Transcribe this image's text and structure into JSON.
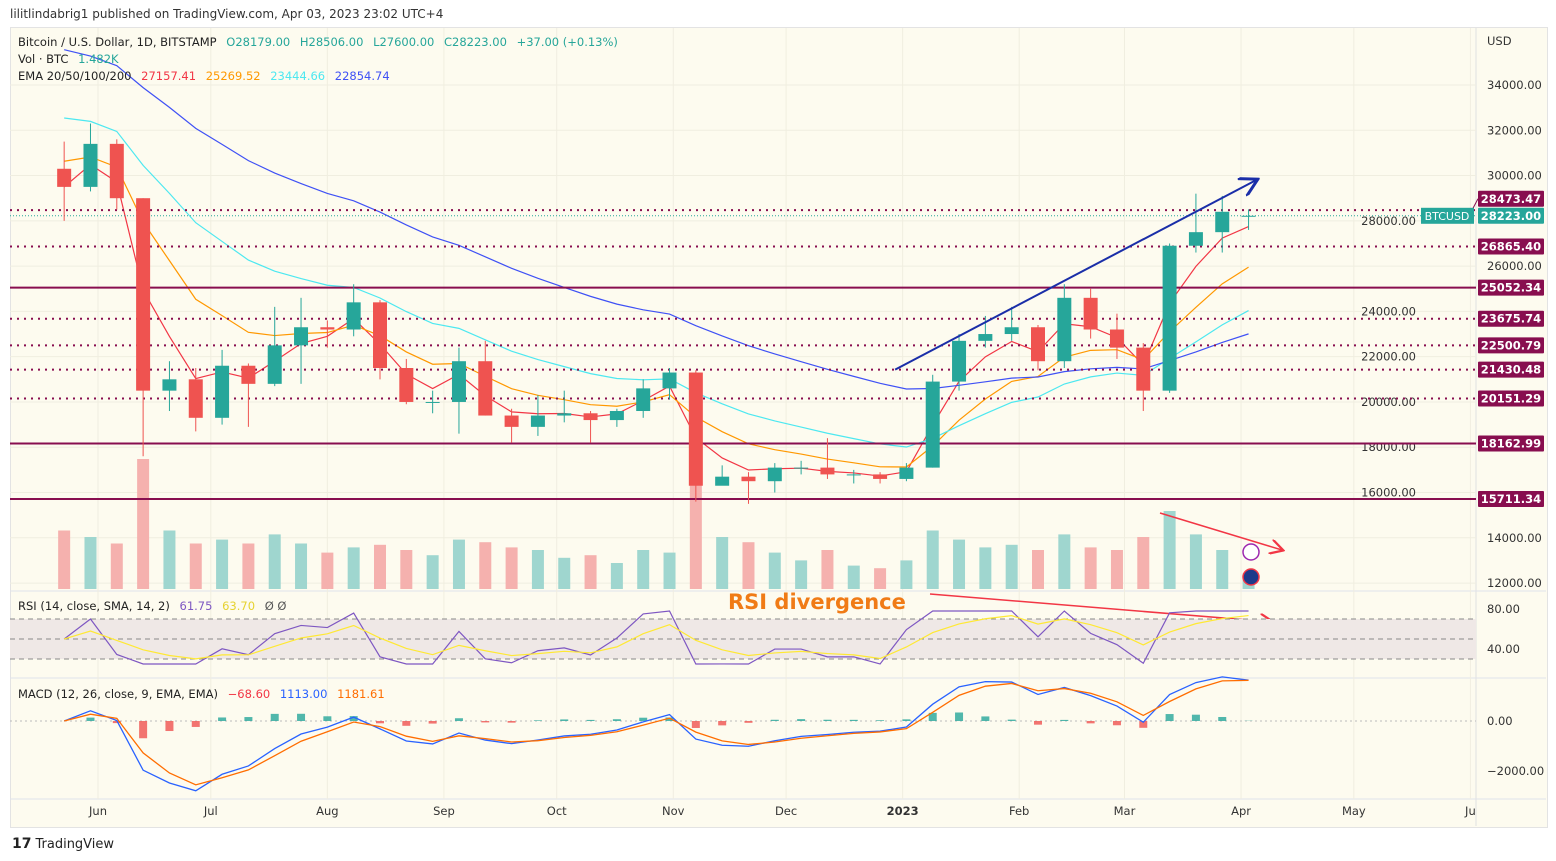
{
  "publisher_line": "lilitlindabrig1 published on TradingView.com, Apr 03, 2023 23:02 UTC+4",
  "footer": {
    "logo_text": "TradingView"
  },
  "legend": {
    "symbol": "Bitcoin / U.S. Dollar, 1D, BITSTAMP",
    "open": "O28179.00",
    "high": "H28506.00",
    "low": "L27600.00",
    "close": "C28223.00",
    "change": "+37.00 (+0.13%)",
    "vol_label": "Vol · BTC",
    "vol_value": "1.482K",
    "ema_label": "EMA 20/50/100/200",
    "ema_values": [
      "27157.41",
      "25269.52",
      "23444.66",
      "22854.74"
    ],
    "rsi_label": "RSI (14, close, SMA, 14, 2)",
    "rsi_value": "61.75",
    "rsi_sma": "63.70",
    "rsi_extra": "Ø  Ø",
    "macd_label": "MACD (12, 26, close, 9, EMA, EMA)",
    "macd_hist": "−68.60",
    "macd_line": "1113.00",
    "macd_signal": "1181.61"
  },
  "colors": {
    "up": "#26a69a",
    "down": "#ef5350",
    "level": "#880e4f",
    "ema20": "#f23645",
    "ema50": "#ff9800",
    "ema100": "#4de8f0",
    "ema200": "#3f51f5",
    "rsi": "#7e57c2",
    "rsi_sma": "#ffe933",
    "macd": "#2962ff",
    "signal": "#ff6d00",
    "trendline": "#1a2ea8",
    "annotation": "#f23645",
    "annotation_text": "#f07b16"
  },
  "price_axis": {
    "currency": "USD",
    "ticks": [
      "34000.00",
      "32000.00",
      "30000.00",
      "28000.00",
      "26000.00",
      "24000.00",
      "22000.00",
      "20000.00",
      "18000.00",
      "16000.00",
      "14000.00",
      "12000.00"
    ]
  },
  "rsi_axis": {
    "ticks": [
      "80.00",
      "40.00"
    ]
  },
  "macd_axis": {
    "ticks": [
      "0.00",
      "−2000.00"
    ]
  },
  "time_axis": {
    "labels": [
      {
        "date": "2022-06-01",
        "text": "Jun"
      },
      {
        "date": "2022-07-01",
        "text": "Jul"
      },
      {
        "date": "2022-08-01",
        "text": "Aug"
      },
      {
        "date": "2022-09-01",
        "text": "Sep"
      },
      {
        "date": "2022-10-01",
        "text": "Oct"
      },
      {
        "date": "2022-11-01",
        "text": "Nov"
      },
      {
        "date": "2022-12-01",
        "text": "Dec"
      },
      {
        "date": "2023-01-01",
        "text": "2023"
      },
      {
        "date": "2023-02-01",
        "text": "Feb"
      },
      {
        "date": "2023-03-01",
        "text": "Mar"
      },
      {
        "date": "2023-04-01",
        "text": "Apr"
      },
      {
        "date": "2023-05-01",
        "text": "May"
      },
      {
        "date": "2023-06-01",
        "text": "Ju"
      }
    ]
  },
  "current_price": {
    "symbol": "BTCUSD",
    "value": "28223.00"
  },
  "levels": [
    {
      "value": 28473.47,
      "label": "28473.47",
      "style": "dotted"
    },
    {
      "value": 26865.4,
      "label": "26865.40",
      "style": "dotted"
    },
    {
      "value": 25052.34,
      "label": "25052.34",
      "style": "solid"
    },
    {
      "value": 23675.74,
      "label": "23675.74",
      "style": "dotted"
    },
    {
      "value": 22500.79,
      "label": "22500.79",
      "style": "dotted"
    },
    {
      "value": 21430.48,
      "label": "21430.48",
      "style": "dotted"
    },
    {
      "value": 20151.29,
      "label": "20151.29",
      "style": "dotted"
    },
    {
      "value": 18162.99,
      "label": "18162.99",
      "style": "solid"
    },
    {
      "value": 15711.34,
      "label": "15711.34",
      "style": "solid"
    }
  ],
  "annotations": {
    "rsi_divergence_text": "RSI divergence",
    "trendline": {
      "from": {
        "date": "2022-12-30",
        "price": 21430
      },
      "to": {
        "date": "2023-04-05",
        "price": 29800
      }
    }
  },
  "chart_data": {
    "type": "candlestick",
    "title": "Bitcoin / U.S. Dollar, 1D, BITSTAMP",
    "ylim": [
      11500,
      35500
    ],
    "xlim": [
      "2022-05-22",
      "2023-06-03"
    ],
    "grid": true,
    "candles": [
      {
        "d": "2022-05-23",
        "o": 30300,
        "h": 31500,
        "l": 28000,
        "c": 29500,
        "v": 45
      },
      {
        "d": "2022-05-30",
        "o": 29500,
        "h": 32300,
        "l": 29300,
        "c": 31400,
        "v": 40
      },
      {
        "d": "2022-06-06",
        "o": 31400,
        "h": 31600,
        "l": 28500,
        "c": 29000,
        "v": 35
      },
      {
        "d": "2022-06-13",
        "o": 29000,
        "h": 29000,
        "l": 17600,
        "c": 20500,
        "v": 100
      },
      {
        "d": "2022-06-20",
        "o": 20500,
        "h": 21800,
        "l": 19600,
        "c": 21000,
        "v": 45
      },
      {
        "d": "2022-06-27",
        "o": 21000,
        "h": 21500,
        "l": 18700,
        "c": 19300,
        "v": 35
      },
      {
        "d": "2022-07-04",
        "o": 19300,
        "h": 22300,
        "l": 19000,
        "c": 21600,
        "v": 38
      },
      {
        "d": "2022-07-11",
        "o": 21600,
        "h": 21700,
        "l": 18900,
        "c": 20800,
        "v": 35
      },
      {
        "d": "2022-07-18",
        "o": 20800,
        "h": 24200,
        "l": 20700,
        "c": 22500,
        "v": 42
      },
      {
        "d": "2022-07-25",
        "o": 22500,
        "h": 24600,
        "l": 20800,
        "c": 23300,
        "v": 35
      },
      {
        "d": "2022-08-01",
        "o": 23300,
        "h": 23600,
        "l": 22400,
        "c": 23200,
        "v": 28
      },
      {
        "d": "2022-08-08",
        "o": 23200,
        "h": 25200,
        "l": 22900,
        "c": 24400,
        "v": 32
      },
      {
        "d": "2022-08-15",
        "o": 24400,
        "h": 24500,
        "l": 21000,
        "c": 21500,
        "v": 34
      },
      {
        "d": "2022-08-22",
        "o": 21500,
        "h": 21900,
        "l": 19900,
        "c": 20000,
        "v": 30
      },
      {
        "d": "2022-08-29",
        "o": 20000,
        "h": 20500,
        "l": 19500,
        "c": 20000,
        "v": 26
      },
      {
        "d": "2022-09-05",
        "o": 20000,
        "h": 22400,
        "l": 18600,
        "c": 21800,
        "v": 38
      },
      {
        "d": "2022-09-12",
        "o": 21800,
        "h": 22700,
        "l": 19400,
        "c": 19400,
        "v": 36
      },
      {
        "d": "2022-09-19",
        "o": 19400,
        "h": 19700,
        "l": 18200,
        "c": 18900,
        "v": 32
      },
      {
        "d": "2022-09-26",
        "o": 18900,
        "h": 20300,
        "l": 18500,
        "c": 19400,
        "v": 30
      },
      {
        "d": "2022-10-03",
        "o": 19400,
        "h": 20500,
        "l": 19100,
        "c": 19500,
        "v": 24
      },
      {
        "d": "2022-10-10",
        "o": 19500,
        "h": 19600,
        "l": 18200,
        "c": 19200,
        "v": 26
      },
      {
        "d": "2022-10-17",
        "o": 19200,
        "h": 19700,
        "l": 18900,
        "c": 19600,
        "v": 20
      },
      {
        "d": "2022-10-24",
        "o": 19600,
        "h": 21000,
        "l": 19300,
        "c": 20600,
        "v": 30
      },
      {
        "d": "2022-10-31",
        "o": 20600,
        "h": 21500,
        "l": 20100,
        "c": 21300,
        "v": 28
      },
      {
        "d": "2022-11-07",
        "o": 21300,
        "h": 21400,
        "l": 15600,
        "c": 16300,
        "v": 95
      },
      {
        "d": "2022-11-14",
        "o": 16300,
        "h": 17200,
        "l": 16400,
        "c": 16700,
        "v": 40
      },
      {
        "d": "2022-11-21",
        "o": 16700,
        "h": 16900,
        "l": 15500,
        "c": 16500,
        "v": 36
      },
      {
        "d": "2022-11-28",
        "o": 16500,
        "h": 17300,
        "l": 16000,
        "c": 17100,
        "v": 28
      },
      {
        "d": "2022-12-05",
        "o": 17100,
        "h": 17400,
        "l": 16800,
        "c": 17100,
        "v": 22
      },
      {
        "d": "2022-12-12",
        "o": 17100,
        "h": 18400,
        "l": 16600,
        "c": 16800,
        "v": 30
      },
      {
        "d": "2022-12-19",
        "o": 16800,
        "h": 17000,
        "l": 16400,
        "c": 16800,
        "v": 18
      },
      {
        "d": "2022-12-26",
        "o": 16800,
        "h": 16900,
        "l": 16400,
        "c": 16600,
        "v": 16
      },
      {
        "d": "2023-01-02",
        "o": 16600,
        "h": 17300,
        "l": 16500,
        "c": 17100,
        "v": 22
      },
      {
        "d": "2023-01-09",
        "o": 17100,
        "h": 21200,
        "l": 17100,
        "c": 20900,
        "v": 45
      },
      {
        "d": "2023-01-16",
        "o": 20900,
        "h": 23000,
        "l": 20500,
        "c": 22700,
        "v": 38
      },
      {
        "d": "2023-01-23",
        "o": 22700,
        "h": 23800,
        "l": 22400,
        "c": 23000,
        "v": 32
      },
      {
        "d": "2023-01-30",
        "o": 23000,
        "h": 24200,
        "l": 22700,
        "c": 23300,
        "v": 34
      },
      {
        "d": "2023-02-06",
        "o": 23300,
        "h": 23400,
        "l": 21400,
        "c": 21800,
        "v": 30
      },
      {
        "d": "2023-02-13",
        "o": 21800,
        "h": 25200,
        "l": 21500,
        "c": 24600,
        "v": 42
      },
      {
        "d": "2023-02-20",
        "o": 24600,
        "h": 25000,
        "l": 22800,
        "c": 23200,
        "v": 32
      },
      {
        "d": "2023-02-27",
        "o": 23200,
        "h": 23900,
        "l": 21900,
        "c": 22400,
        "v": 30
      },
      {
        "d": "2023-03-06",
        "o": 22400,
        "h": 22600,
        "l": 19600,
        "c": 20500,
        "v": 40
      },
      {
        "d": "2023-03-13",
        "o": 20500,
        "h": 27000,
        "l": 20400,
        "c": 26900,
        "v": 60
      },
      {
        "d": "2023-03-20",
        "o": 26900,
        "h": 29200,
        "l": 26600,
        "c": 27500,
        "v": 42
      },
      {
        "d": "2023-03-27",
        "o": 27500,
        "h": 29100,
        "l": 26600,
        "c": 28400,
        "v": 30
      },
      {
        "d": "2023-04-03",
        "o": 28179,
        "h": 28506,
        "l": 27600,
        "c": 28223,
        "v": 12
      }
    ]
  }
}
